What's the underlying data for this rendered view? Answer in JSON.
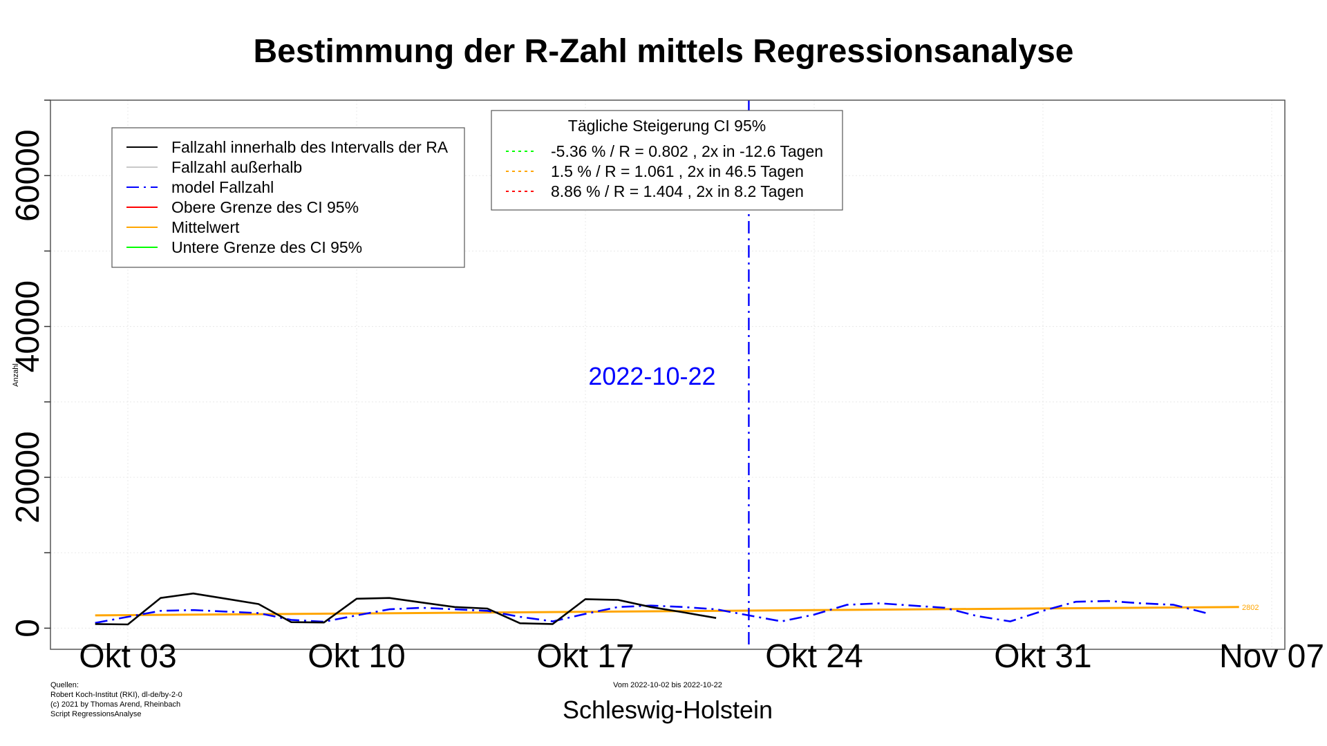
{
  "chart_data": {
    "type": "line",
    "title": "Bestimmung der R-Zahl mittels Regressionsanalyse",
    "subtitle": "Schleswig-Holstein",
    "xlabel": "",
    "ylabel": "Anzahl",
    "ylim": [
      -2800,
      70000
    ],
    "xlim": [
      "2022-09-30",
      "2022-11-07"
    ],
    "y_ticks": [
      0,
      20000,
      40000,
      60000
    ],
    "y_minor_ticks": [
      10000,
      30000,
      50000,
      70000
    ],
    "x_ticks": [
      {
        "date": "2022-10-03",
        "label": "Okt 03"
      },
      {
        "date": "2022-10-10",
        "label": "Okt 10"
      },
      {
        "date": "2022-10-17",
        "label": "Okt 17"
      },
      {
        "date": "2022-10-24",
        "label": "Okt 24"
      },
      {
        "date": "2022-10-31",
        "label": "Okt 31"
      },
      {
        "date": "2022-11-07",
        "label": "Nov 07"
      }
    ],
    "grid": true,
    "series": [
      {
        "name": "Fallzahl innerhalb des Intervalls der RA",
        "color": "#000000",
        "style": "solid",
        "x": [
          "2022-10-02",
          "2022-10-03",
          "2022-10-04",
          "2022-10-05",
          "2022-10-06",
          "2022-10-07",
          "2022-10-08",
          "2022-10-09",
          "2022-10-10",
          "2022-10-11",
          "2022-10-12",
          "2022-10-13",
          "2022-10-14",
          "2022-10-15",
          "2022-10-16",
          "2022-10-17",
          "2022-10-18",
          "2022-10-19",
          "2022-10-20",
          "2022-10-21",
          "2022-10-22"
        ],
        "y": [
          550,
          500,
          4000,
          4600,
          3900,
          3200,
          800,
          750,
          3900,
          4000,
          3400,
          2800,
          2600,
          650,
          550,
          3850,
          3750,
          2800,
          2100,
          1350,
          null
        ]
      },
      {
        "name": "Fallzahl außerhalb",
        "color": "#c8c8c8",
        "style": "solid",
        "x": [],
        "y": []
      },
      {
        "name": "model Fallzahl",
        "color": "#0000ff",
        "style": "dashdot",
        "x": [
          "2022-10-02",
          "2022-10-03",
          "2022-10-04",
          "2022-10-05",
          "2022-10-06",
          "2022-10-07",
          "2022-10-08",
          "2022-10-09",
          "2022-10-10",
          "2022-10-11",
          "2022-10-12",
          "2022-10-13",
          "2022-10-14",
          "2022-10-15",
          "2022-10-16",
          "2022-10-17",
          "2022-10-18",
          "2022-10-19",
          "2022-10-20",
          "2022-10-21",
          "2022-10-22",
          "2022-10-23",
          "2022-10-24",
          "2022-10-25",
          "2022-10-26",
          "2022-10-27",
          "2022-10-28",
          "2022-10-29",
          "2022-10-30",
          "2022-10-31",
          "2022-11-01",
          "2022-11-02",
          "2022-11-03",
          "2022-11-04",
          "2022-11-05"
        ],
        "y": [
          700,
          1500,
          2300,
          2400,
          2200,
          2000,
          1100,
          850,
          1700,
          2500,
          2700,
          2500,
          2300,
          1500,
          900,
          1900,
          2800,
          3000,
          2800,
          2500,
          1700,
          900,
          1800,
          3100,
          3300,
          3000,
          2700,
          1600,
          900,
          2300,
          3500,
          3600,
          3300,
          3100,
          2000
        ]
      },
      {
        "name": "Obere Grenze des CI 95%",
        "color": "#ff0000",
        "style": "solid",
        "x": [],
        "y": []
      },
      {
        "name": "Mittelwert",
        "color": "#ffa500",
        "style": "solid",
        "x": [
          "2022-10-02",
          "2022-11-06"
        ],
        "y": [
          1700,
          2802
        ]
      },
      {
        "name": "Untere Grenze des CI 95%",
        "color": "#00ff00",
        "style": "solid",
        "x": [],
        "y": []
      }
    ],
    "vline": {
      "date": "2022-10-22",
      "color": "#0000ff",
      "style": "dashdot",
      "label": "2022-10-22"
    },
    "end_label": {
      "text": "2802",
      "color": "#ffa500"
    },
    "legend_main": {
      "placement": "top-left",
      "items": [
        {
          "label": "Fallzahl innerhalb des Intervalls der RA",
          "color": "#000000",
          "style": "solid"
        },
        {
          "label": "Fallzahl außerhalb",
          "color": "#c8c8c8",
          "style": "solid"
        },
        {
          "label": "model Fallzahl",
          "color": "#0000ff",
          "style": "dashdot"
        },
        {
          "label": "Obere Grenze des CI 95%",
          "color": "#ff0000",
          "style": "solid"
        },
        {
          "label": "Mittelwert",
          "color": "#ffa500",
          "style": "solid"
        },
        {
          "label": "Untere Grenze des CI 95%",
          "color": "#00ff00",
          "style": "solid"
        }
      ]
    },
    "legend_ci": {
      "placement": "top-center",
      "title": "Tägliche Steigerung CI  95%",
      "items": [
        {
          "label": "-5.36 % / R = 0.802 , 2x in -12.6 Tagen",
          "color": "#00ff00",
          "style": "dotted"
        },
        {
          "label": "1.5 % / R = 1.061 , 2x in 46.5 Tagen",
          "color": "#ffa500",
          "style": "dotted"
        },
        {
          "label": "8.86 % / R = 1.404 , 2x in 8.2 Tagen",
          "color": "#ff0000",
          "style": "dotted"
        }
      ]
    },
    "sources": [
      "Quellen:",
      "Robert Koch-Institut (RKI), dl-de/by-2-0",
      "(c) 2021 by Thomas Arend, Rheinbach",
      "Script RegressionsAnalyse"
    ],
    "period_note": "Vom 2022-10-02 bis 2022-10-22"
  }
}
